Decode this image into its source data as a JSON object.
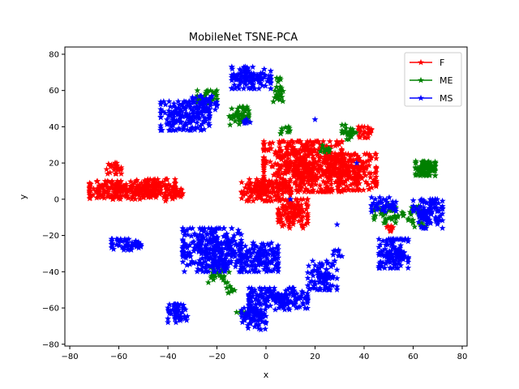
{
  "chart_data": {
    "type": "scatter",
    "title": "MobileNet TSNE-PCA",
    "xlabel": "x",
    "ylabel": "y",
    "xlim": [
      -82,
      82
    ],
    "ylim": [
      -81,
      84
    ],
    "xticks": [
      -80,
      -60,
      -40,
      -20,
      0,
      20,
      40,
      60,
      80
    ],
    "yticks": [
      -80,
      -60,
      -40,
      -20,
      0,
      20,
      40,
      60,
      80
    ],
    "marker": "star",
    "grid": false,
    "legend_position": "top-right",
    "series": [
      {
        "name": "F",
        "color": "#ff0000",
        "clusters": [
          {
            "cx": -60,
            "cy": 5,
            "rx": 12,
            "ry": 5,
            "n": 180
          },
          {
            "cx": -45,
            "cy": 6,
            "rx": 8,
            "ry": 5,
            "n": 120
          },
          {
            "cx": -62,
            "cy": 17,
            "rx": 3,
            "ry": 3,
            "n": 25
          },
          {
            "cx": -37,
            "cy": 3,
            "rx": 4,
            "ry": 4,
            "n": 30
          },
          {
            "cx": 15,
            "cy": 18,
            "rx": 16,
            "ry": 14,
            "n": 520
          },
          {
            "cx": 35,
            "cy": 15,
            "rx": 10,
            "ry": 10,
            "n": 240
          },
          {
            "cx": 0,
            "cy": 5,
            "rx": 10,
            "ry": 6,
            "n": 140
          },
          {
            "cx": 11,
            "cy": -8,
            "rx": 6,
            "ry": 8,
            "n": 120
          },
          {
            "cx": 40,
            "cy": 37,
            "rx": 3,
            "ry": 3,
            "n": 25
          },
          {
            "cx": 51,
            "cy": -15,
            "rx": 2,
            "ry": 3,
            "n": 10
          }
        ]
      },
      {
        "name": "ME",
        "color": "#008000",
        "clusters": [
          {
            "cx": 65,
            "cy": 17,
            "rx": 4,
            "ry": 4,
            "n": 90
          },
          {
            "cx": -11,
            "cy": 46,
            "rx": 4,
            "ry": 5,
            "n": 45
          },
          {
            "cx": -24,
            "cy": 56,
            "rx": 4,
            "ry": 4,
            "n": 30
          },
          {
            "cx": 5,
            "cy": 60,
            "rx": 2,
            "ry": 7,
            "n": 25
          },
          {
            "cx": 34,
            "cy": 37,
            "rx": 3,
            "ry": 4,
            "n": 25
          },
          {
            "cx": 24,
            "cy": 28,
            "rx": 2,
            "ry": 2,
            "n": 10
          },
          {
            "cx": 8,
            "cy": 38,
            "rx": 2,
            "ry": 2,
            "n": 10
          },
          {
            "cx": 50,
            "cy": -8,
            "rx": 6,
            "ry": 5,
            "n": 45
          },
          {
            "cx": 62,
            "cy": -10,
            "rx": 4,
            "ry": 8,
            "n": 25
          },
          {
            "cx": -20,
            "cy": -41,
            "rx": 5,
            "ry": 5,
            "n": 25
          },
          {
            "cx": -14,
            "cy": -50,
            "rx": 2,
            "ry": 2,
            "n": 8
          },
          {
            "cx": -10,
            "cy": -63,
            "rx": 2,
            "ry": 2,
            "n": 6
          }
        ]
      },
      {
        "name": "MS",
        "color": "#0000ff",
        "clusters": [
          {
            "cx": -6,
            "cy": 67,
            "rx": 8,
            "ry": 6,
            "n": 130
          },
          {
            "cx": -33,
            "cy": 46,
            "rx": 10,
            "ry": 8,
            "n": 170
          },
          {
            "cx": -25,
            "cy": 53,
            "rx": 5,
            "ry": 4,
            "n": 45
          },
          {
            "cx": -57,
            "cy": -25,
            "rx": 6,
            "ry": 3,
            "n": 55
          },
          {
            "cx": -22,
            "cy": -28,
            "rx": 12,
            "ry": 12,
            "n": 330
          },
          {
            "cx": -3,
            "cy": -32,
            "rx": 8,
            "ry": 8,
            "n": 140
          },
          {
            "cx": 5,
            "cy": -55,
            "rx": 12,
            "ry": 6,
            "n": 190
          },
          {
            "cx": -36,
            "cy": -63,
            "rx": 4,
            "ry": 5,
            "n": 55
          },
          {
            "cx": -5,
            "cy": -66,
            "rx": 5,
            "ry": 6,
            "n": 70
          },
          {
            "cx": 23,
            "cy": -42,
            "rx": 6,
            "ry": 8,
            "n": 90
          },
          {
            "cx": 52,
            "cy": -30,
            "rx": 6,
            "ry": 8,
            "n": 130
          },
          {
            "cx": 66,
            "cy": -8,
            "rx": 6,
            "ry": 8,
            "n": 110
          },
          {
            "cx": 48,
            "cy": -3,
            "rx": 5,
            "ry": 4,
            "n": 45
          },
          {
            "cx": 29,
            "cy": -30,
            "rx": 2,
            "ry": 2,
            "n": 8
          },
          {
            "cx": -7,
            "cy": 42,
            "rx": 2,
            "ry": 2,
            "n": 8
          }
        ],
        "points": [
          [
            10,
            0
          ],
          [
            20,
            44
          ],
          [
            37,
            20
          ],
          [
            29,
            -14
          ]
        ]
      }
    ]
  }
}
